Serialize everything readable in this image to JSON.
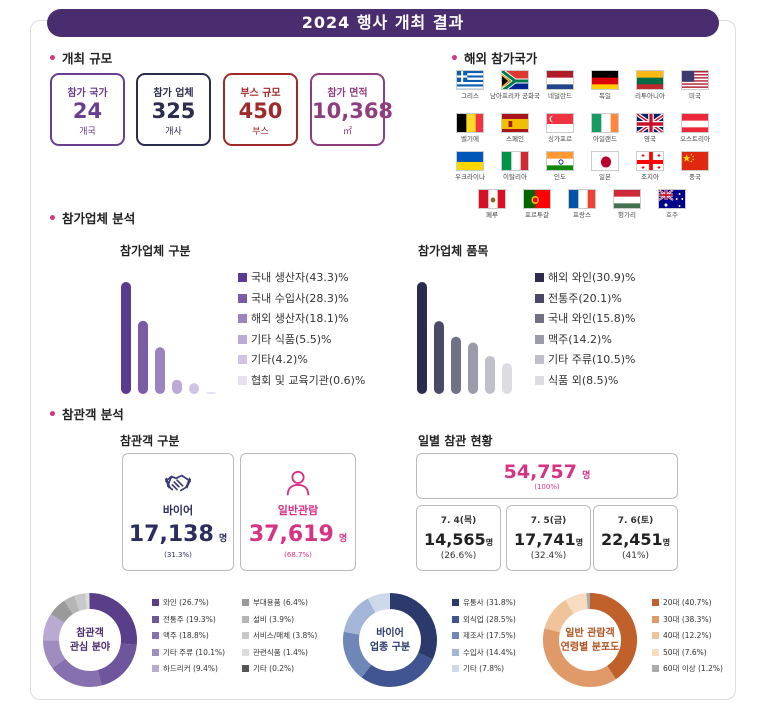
{
  "title": "2024 행사 개최 결과",
  "sections": {
    "scale": "개최 규모",
    "countries": "해외 참가국가",
    "exhibitors": "참가업체 분석",
    "visitors": "참관객 분석"
  },
  "cards": [
    {
      "label": "참가 국가",
      "value": "24",
      "unit": "개국",
      "color": "#6a3e8f"
    },
    {
      "label": "참가 업체",
      "value": "325",
      "unit": "개사",
      "color": "#2c2c4e"
    },
    {
      "label": "부스 규모",
      "value": "450",
      "unit": "부스",
      "color": "#9e2a2a"
    },
    {
      "label": "참가 면적",
      "value": "10,368",
      "unit": "㎡",
      "color": "#8e3e7f"
    }
  ],
  "flags": [
    {
      "name": "그리스",
      "icon": "greece-flag-icon"
    },
    {
      "name": "남아프리카 공화국",
      "icon": "south-africa-flag-icon"
    },
    {
      "name": "네덜란드",
      "icon": "netherlands-flag-icon"
    },
    {
      "name": "독일",
      "icon": "germany-flag-icon"
    },
    {
      "name": "리투아니아",
      "icon": "lithuania-flag-icon"
    },
    {
      "name": "미국",
      "icon": "usa-flag-icon"
    },
    {
      "name": "벨기에",
      "icon": "belgium-flag-icon"
    },
    {
      "name": "스페인",
      "icon": "spain-flag-icon"
    },
    {
      "name": "싱가포르",
      "icon": "singapore-flag-icon"
    },
    {
      "name": "아일랜드",
      "icon": "ireland-flag-icon"
    },
    {
      "name": "영국",
      "icon": "uk-flag-icon"
    },
    {
      "name": "오스트리아",
      "icon": "austria-flag-icon"
    },
    {
      "name": "우크라이나",
      "icon": "ukraine-flag-icon"
    },
    {
      "name": "이탈리아",
      "icon": "italy-flag-icon"
    },
    {
      "name": "인도",
      "icon": "india-flag-icon"
    },
    {
      "name": "일본",
      "icon": "japan-flag-icon"
    },
    {
      "name": "조지아",
      "icon": "georgia-flag-icon"
    },
    {
      "name": "중국",
      "icon": "china-flag-icon"
    },
    {
      "name": "페루",
      "icon": "peru-flag-icon"
    },
    {
      "name": "포르투갈",
      "icon": "portugal-flag-icon"
    },
    {
      "name": "프랑스",
      "icon": "france-flag-icon"
    },
    {
      "name": "헝가리",
      "icon": "hungary-flag-icon"
    },
    {
      "name": "호주",
      "icon": "australia-flag-icon"
    }
  ],
  "chart_data": [
    {
      "type": "bar",
      "title": "참가업체 구분",
      "categories": [
        "국내 생산자",
        "국내 수입사",
        "해외 생산자",
        "기타 식품",
        "기타",
        "협회 및 교육기관"
      ],
      "values": [
        43.3,
        28.3,
        18.1,
        5.5,
        4.2,
        0.6
      ],
      "labels": [
        "국내 생산자(43.3)%",
        "국내 수입사(28.3)%",
        "해외 생산자(18.1)%",
        "기타 식품(5.5)%",
        "기타(4.2)%",
        "협회 및 교육기관(0.6)%"
      ],
      "colors": [
        "#5b3b91",
        "#7b5ba8",
        "#9b83c2",
        "#bba9d8",
        "#d0c4e6",
        "#e6e0f1"
      ]
    },
    {
      "type": "bar",
      "title": "참가업체 품목",
      "categories": [
        "해외 와인",
        "전통주",
        "국내 와인",
        "맥주",
        "기타 주류",
        "식품 외"
      ],
      "values": [
        30.9,
        20.1,
        15.8,
        14.2,
        10.5,
        8.5
      ],
      "labels": [
        "해외 와인(30.9)%",
        "전통주(20.1)%",
        "국내 와인(15.8)%",
        "맥주(14.2)%",
        "기타 주류(10.5)%",
        "식품 외(8.5)%"
      ],
      "colors": [
        "#2b2b4d",
        "#4a4a68",
        "#707087",
        "#9b9bab",
        "#c0c0ca",
        "#dcdce2"
      ]
    },
    {
      "type": "pie",
      "title": "참관객 관심 분야",
      "categories": [
        "와인",
        "전통주",
        "맥주",
        "기타 주류",
        "하드리커",
        "부대용품",
        "설비",
        "서비스/매체",
        "관련식품",
        "기타"
      ],
      "values": [
        26.7,
        19.3,
        18.8,
        10.1,
        9.4,
        6.4,
        3.9,
        3.8,
        1.4,
        0.2
      ],
      "labels": [
        "와인 (26.7%)",
        "전통주 (19.3%)",
        "맥주 (18.8%)",
        "기타 주류 (10.1%)",
        "하드리커 (9.4%)",
        "부대용품 (6.4%)",
        "설비 (3.9%)",
        "서비스/매체 (3.8%)",
        "관련식품 (1.4%)",
        "기타 (0.2%)"
      ],
      "colors": [
        "#5a3e8a",
        "#6e559c",
        "#8670ae",
        "#a08dc0",
        "#b9aad2",
        "#9a9a9a",
        "#b5b5b5",
        "#c8c8c8",
        "#dcdcdc",
        "#555555"
      ]
    },
    {
      "type": "pie",
      "title": "바이어 업종 구분",
      "categories": [
        "유통사",
        "외식업",
        "제조사",
        "수입사",
        "기타"
      ],
      "values": [
        31.8,
        28.5,
        17.5,
        14.4,
        7.8
      ],
      "labels": [
        "유통사 (31.8%)",
        "외식업 (28.5%)",
        "제조사 (17.5%)",
        "수입사 (14.4%)",
        "기타 (7.8%)"
      ],
      "colors": [
        "#2b3a6b",
        "#3f5490",
        "#6e86b8",
        "#a3b6d8",
        "#cdd8ea"
      ]
    },
    {
      "type": "pie",
      "title": "일반 관람객 연령별 분포도",
      "categories": [
        "20대",
        "30대",
        "40대",
        "50대",
        "60대 이상"
      ],
      "values": [
        40.7,
        38.3,
        12.2,
        7.6,
        1.2
      ],
      "labels": [
        "20대 (40.7%)",
        "30대 (38.3%)",
        "40대 (12.2%)",
        "50대 (7.6%)",
        "60대 이상 (1.2%)"
      ],
      "colors": [
        "#c0602a",
        "#e09a6a",
        "#f0c49a",
        "#f7dcc0",
        "#aaaaaa"
      ]
    }
  ],
  "visitors": {
    "type_title": "참관객 구분",
    "daily_title": "일별 참관 현황",
    "buyer": {
      "label": "바이어",
      "value": "17,138",
      "unit": "명",
      "pct": "(31.3%)",
      "icon": "handshake-icon"
    },
    "general": {
      "label": "일반관람",
      "value": "37,619",
      "unit": "명",
      "pct": "(68.7%)",
      "icon": "person-icon"
    },
    "total": {
      "value": "54,757",
      "unit": "명",
      "pct": "(100%)"
    },
    "days": [
      {
        "date": "7. 4(목)",
        "value": "14,565",
        "unit": "명",
        "pct": "(26.6%)"
      },
      {
        "date": "7. 5(금)",
        "value": "17,741",
        "unit": "명",
        "pct": "(32.4%)"
      },
      {
        "date": "7. 6(토)",
        "value": "22,451",
        "unit": "명",
        "pct": "(41%)"
      }
    ]
  },
  "donut_labels": [
    "참관객",
    "관심 분야",
    "바이어",
    "업종 구분",
    "일반 관람객",
    "연령별 분포도"
  ]
}
